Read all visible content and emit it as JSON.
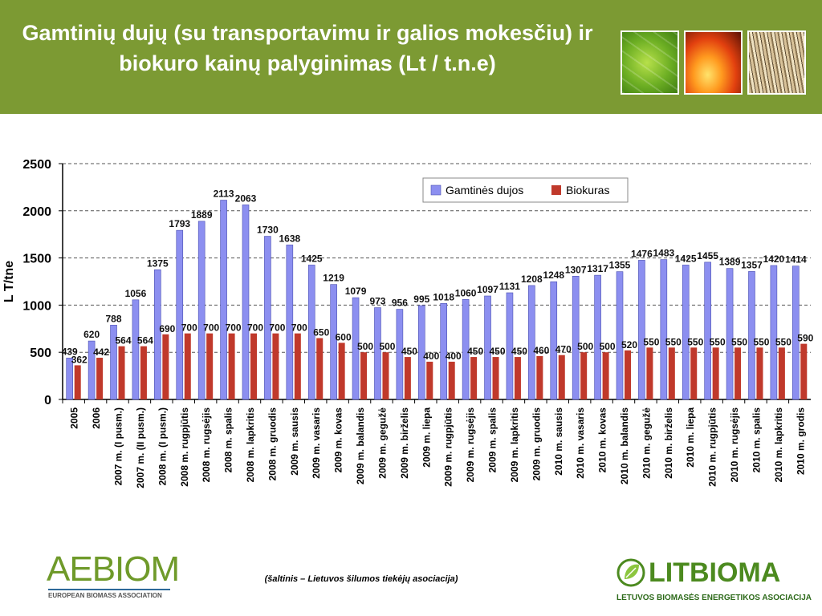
{
  "header": {
    "title": "Gamtinių dujų (su transportavimu ir galios mokesčiu) ir biokuro kainų palyginimas (Lt / t.n.e)"
  },
  "images": [
    "leaf-photo",
    "fire-photo",
    "straw-photo"
  ],
  "source": "(šaltinis – Lietuvos šilumos tiekėjų asociacija)",
  "logos": {
    "aebiom": {
      "name": "AEBIOM",
      "subtitle": "EUROPEAN BIOMASS ASSOCIATION"
    },
    "litbioma": {
      "name": "LITBIOMA",
      "subtitle": "LETUVOS BIOMASĖS ENERGETIKOS ASOCIACIJA"
    }
  },
  "colors": {
    "header_bg": "#7c9a33",
    "gas": "#8c8ff0",
    "biofuel": "#c0392b"
  },
  "chart_data": {
    "type": "bar",
    "title": "",
    "xlabel": "",
    "ylabel": "L T/tne",
    "ylim": [
      0,
      2500
    ],
    "yticks": [
      0,
      500,
      1000,
      1500,
      2000,
      2500
    ],
    "grid": true,
    "legend_position": "top-right",
    "categories": [
      "2005",
      "2006",
      "2007 m. (I pusm.)",
      "2007 m. (II pusm.)",
      "2008 m. (I pusm.)",
      "2008 m. rugpjūtis",
      "2008 m. rugsėjis",
      "2008 m. spalis",
      "2008 m. lapkritis",
      "2008 m. gruodis",
      "2009 m. sausis",
      "2009 m. vasaris",
      "2009 m. kovas",
      "2009 m. balandis",
      "2009 m. gegužė",
      "2009 m. birželis",
      "2009 m. liepa",
      "2009 m. rugpjūtis",
      "2009 m. rugsėjis",
      "2009 m. spalis",
      "2009 m. lapkritis",
      "2009 m. gruodis",
      "2010 m. sausis",
      "2010 m. vasaris",
      "2010 m. kovas",
      "2010 m. balandis",
      "2010 m. gegužė",
      "2010 m. birželis",
      "2010 m. liepa",
      "2010 m. rugpjūtis",
      "2010 m. rugsėjis",
      "2010 m. spalis",
      "2010 m. lapkritis",
      "2010 m. grodis"
    ],
    "series": [
      {
        "name": "Gamtinės dujos",
        "color": "#8c8ff0",
        "values": [
          439,
          620,
          788,
          1056,
          1375,
          1793,
          1889,
          2113,
          2063,
          1730,
          1638,
          1425,
          1219,
          1079,
          973,
          956,
          995,
          1018,
          1060,
          1097,
          1131,
          1208,
          1248,
          1307,
          1317,
          1355,
          1476,
          1483,
          1425,
          1455,
          1389,
          1357,
          1420,
          1414
        ]
      },
      {
        "name": "Biokuras",
        "color": "#c0392b",
        "values": [
          362,
          442,
          564,
          564,
          690,
          700,
          700,
          700,
          700,
          700,
          700,
          650,
          600,
          500,
          500,
          450,
          400,
          400,
          450,
          450,
          450,
          460,
          470,
          500,
          500,
          520,
          550,
          550,
          550,
          550,
          550,
          550,
          550,
          590
        ]
      }
    ]
  }
}
